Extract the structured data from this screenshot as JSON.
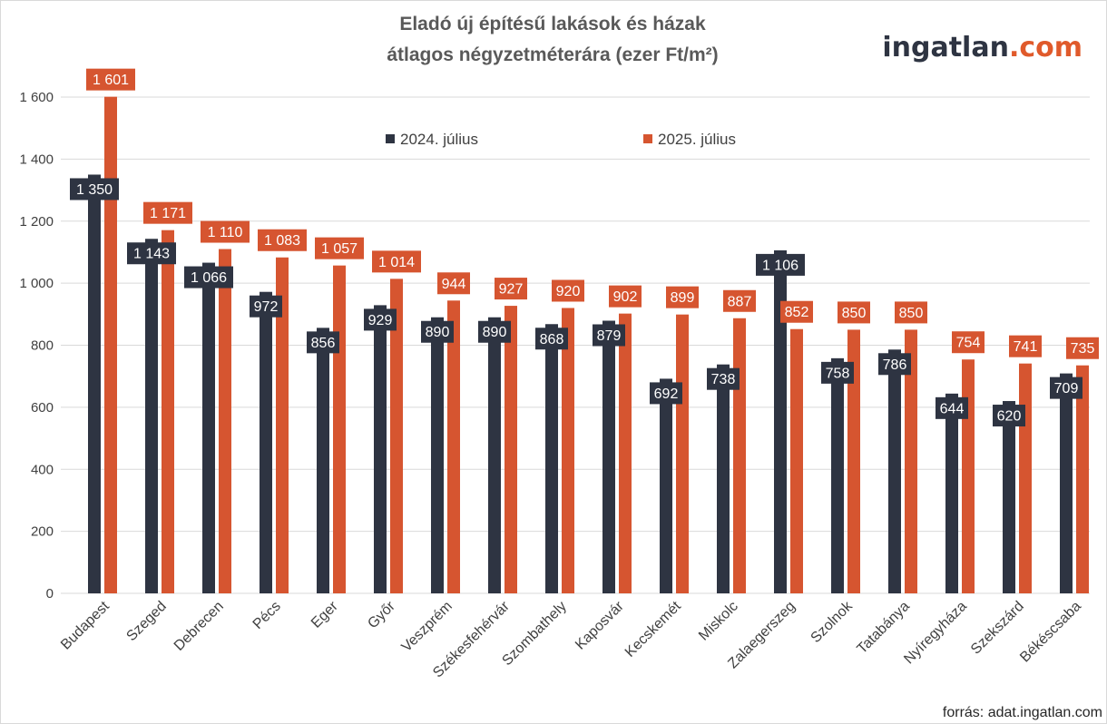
{
  "logo": {
    "main": "ingatlan",
    "accent": ".com"
  },
  "source": "forrás: adat.ingatlan.com",
  "colors": {
    "series_2024": "#2e3442",
    "series_2025": "#d65530",
    "grid": "#d9d9d9",
    "axis_text": "#404040",
    "title": "#595959",
    "logo_accent": "#e05a2b"
  },
  "chart_data": {
    "type": "bar",
    "title": "Eladó új építésű lakások és házak",
    "subtitle": "átlagos négyzetméterára (ezer Ft/m²)",
    "xlabel": "",
    "ylabel": "",
    "ylim": [
      0,
      1600
    ],
    "yticks": [
      0,
      200,
      400,
      600,
      800,
      1000,
      1200,
      1400,
      1600
    ],
    "ytick_labels": [
      "0",
      "200",
      "400",
      "600",
      "800",
      "1 000",
      "1 200",
      "1 400",
      "1 600"
    ],
    "grid": true,
    "legend_position": "top-center",
    "categories": [
      "Budapest",
      "Szeged",
      "Debrecen",
      "Pécs",
      "Eger",
      "Győr",
      "Veszprém",
      "Székesfehérvár",
      "Szombathely",
      "Kaposvár",
      "Kecskemét",
      "Miskolc",
      "Zalaegerszeg",
      "Szolnok",
      "Tatabánya",
      "Nyíregyháza",
      "Szekszárd",
      "Békéscsaba"
    ],
    "series": [
      {
        "name": "2024. július",
        "values": [
          1350,
          1143,
          1066,
          972,
          856,
          929,
          890,
          890,
          868,
          879,
          692,
          738,
          1106,
          758,
          786,
          644,
          620,
          709
        ],
        "labels": [
          "1 350",
          "1 143",
          "1 066",
          "972",
          "856",
          "929",
          "890",
          "890",
          "868",
          "879",
          "692",
          "738",
          "1 106",
          "758",
          "786",
          "644",
          "620",
          "709"
        ]
      },
      {
        "name": "2025. július",
        "values": [
          1601,
          1171,
          1110,
          1083,
          1057,
          1014,
          944,
          927,
          920,
          902,
          899,
          887,
          852,
          850,
          850,
          754,
          741,
          735
        ],
        "labels": [
          "1 601",
          "1 171",
          "1 110",
          "1 083",
          "1 057",
          "1 014",
          "944",
          "927",
          "920",
          "902",
          "899",
          "887",
          "852",
          "850",
          "850",
          "754",
          "741",
          "735"
        ]
      }
    ]
  }
}
